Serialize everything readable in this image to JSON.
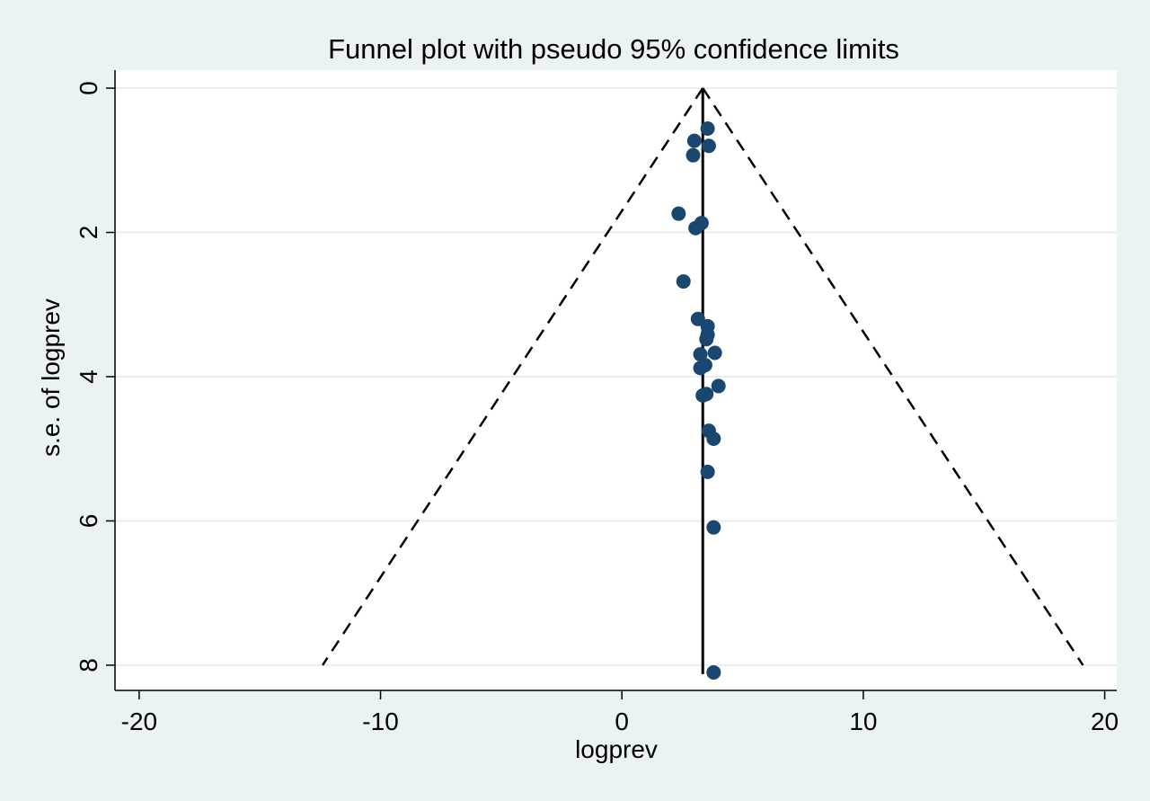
{
  "chart_data": {
    "type": "scatter",
    "title": "Funnel plot with pseudo 95% confidence limits",
    "xlabel": "logprev",
    "ylabel": "s.e. of logprev",
    "xlim": [
      -21,
      20.5
    ],
    "ylim": [
      8.35,
      -0.25
    ],
    "y_reversed": true,
    "x_ticks": [
      -20,
      -10,
      0,
      10,
      20
    ],
    "x_tick_labels": [
      "-20",
      "-10",
      "0",
      "10",
      "20"
    ],
    "y_ticks": [
      0,
      2,
      4,
      6,
      8
    ],
    "y_tick_labels": [
      "0",
      "2",
      "4",
      "6",
      "8"
    ],
    "grid": true,
    "pooled_estimate": 3.35,
    "funnel": {
      "apex": [
        3.35,
        0
      ],
      "bottom_left": [
        -12.4,
        8
      ],
      "bottom_right": [
        19.1,
        8
      ]
    },
    "points": [
      {
        "x": 3.55,
        "y": 0.56
      },
      {
        "x": 3.0,
        "y": 0.73
      },
      {
        "x": 3.6,
        "y": 0.8
      },
      {
        "x": 2.95,
        "y": 0.93
      },
      {
        "x": 2.35,
        "y": 1.74
      },
      {
        "x": 3.3,
        "y": 1.87
      },
      {
        "x": 3.05,
        "y": 1.94
      },
      {
        "x": 2.55,
        "y": 2.68
      },
      {
        "x": 3.15,
        "y": 3.2
      },
      {
        "x": 3.55,
        "y": 3.3
      },
      {
        "x": 3.55,
        "y": 3.42
      },
      {
        "x": 3.5,
        "y": 3.48
      },
      {
        "x": 3.85,
        "y": 3.67
      },
      {
        "x": 3.25,
        "y": 3.69
      },
      {
        "x": 3.45,
        "y": 3.84
      },
      {
        "x": 3.25,
        "y": 3.88
      },
      {
        "x": 4.0,
        "y": 4.13
      },
      {
        "x": 3.5,
        "y": 4.24
      },
      {
        "x": 3.35,
        "y": 4.26
      },
      {
        "x": 3.6,
        "y": 4.75
      },
      {
        "x": 3.8,
        "y": 4.86
      },
      {
        "x": 3.55,
        "y": 5.32
      },
      {
        "x": 3.8,
        "y": 6.09
      },
      {
        "x": 3.8,
        "y": 8.1
      }
    ]
  },
  "colors": {
    "background": "#eaf2f3",
    "plot_background": "#ffffff",
    "marker": "#1a476f",
    "gridline": "#e8eef0"
  }
}
